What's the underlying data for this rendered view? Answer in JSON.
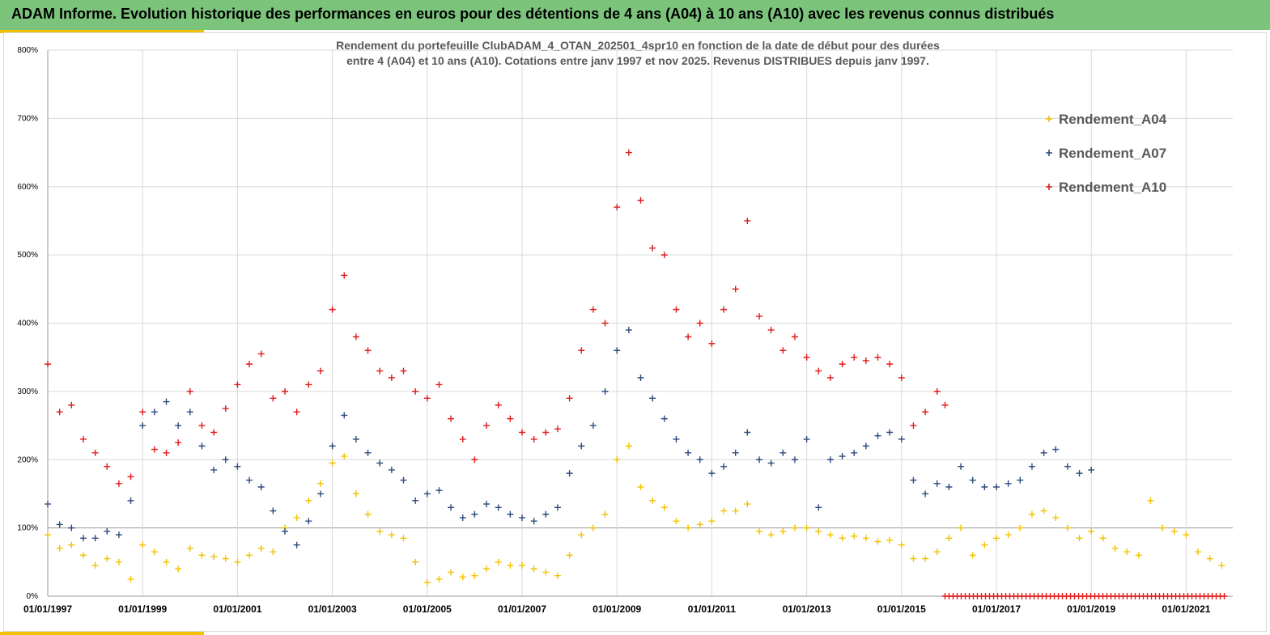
{
  "header": {
    "title": "ADAM Informe. Evolution historique des performances en euros pour des détentions de 4 ans (A04) à 10 ans (A10) avec les revenus connus distribués"
  },
  "chart_data": {
    "type": "scatter",
    "title": "",
    "subtitle_lines": [
      "Rendement du portefeuille ClubADAM_4_OTAN_202501_4spr10  en fonction de la date de début pour des durées",
      "entre 4 (A04) et 10 ans (A10). Cotations entre janv 1997 et nov 2025. Revenus DISTRIBUES depuis janv 1997."
    ],
    "xlabel": "",
    "ylabel": "",
    "xlim": [
      "1997-01-01",
      "2021-11-30"
    ],
    "ylim": [
      0,
      800
    ],
    "grid": true,
    "legend_position": "top-right",
    "x_tick_labels": [
      "01/01/1997",
      "01/01/1999",
      "01/01/2001",
      "01/01/2003",
      "01/01/2005",
      "01/01/2007",
      "01/01/2009",
      "01/01/2011",
      "01/01/2013",
      "01/01/2015",
      "01/01/2017",
      "01/01/2019",
      "01/01/2021"
    ],
    "y_tick_labels": [
      "0%",
      "100%",
      "200%",
      "300%",
      "400%",
      "500%",
      "600%",
      "700%",
      "800%"
    ],
    "series": [
      {
        "name": "Rendement_A04",
        "color": "#f2c200",
        "points": [
          [
            "1997-01",
            90
          ],
          [
            "1997-04",
            70
          ],
          [
            "1997-07",
            75
          ],
          [
            "1997-10",
            60
          ],
          [
            "1998-01",
            45
          ],
          [
            "1998-04",
            55
          ],
          [
            "1998-07",
            50
          ],
          [
            "1998-10",
            25
          ],
          [
            "1999-01",
            75
          ],
          [
            "1999-04",
            65
          ],
          [
            "1999-07",
            50
          ],
          [
            "1999-10",
            40
          ],
          [
            "2000-01",
            70
          ],
          [
            "2000-04",
            60
          ],
          [
            "2000-07",
            58
          ],
          [
            "2000-10",
            55
          ],
          [
            "2001-01",
            50
          ],
          [
            "2001-04",
            60
          ],
          [
            "2001-07",
            70
          ],
          [
            "2001-10",
            65
          ],
          [
            "2002-01",
            100
          ],
          [
            "2002-04",
            115
          ],
          [
            "2002-07",
            140
          ],
          [
            "2002-10",
            165
          ],
          [
            "2003-01",
            195
          ],
          [
            "2003-04",
            205
          ],
          [
            "2003-07",
            150
          ],
          [
            "2003-10",
            120
          ],
          [
            "2004-01",
            95
          ],
          [
            "2004-04",
            90
          ],
          [
            "2004-07",
            85
          ],
          [
            "2004-10",
            50
          ],
          [
            "2005-01",
            20
          ],
          [
            "2005-04",
            25
          ],
          [
            "2005-07",
            35
          ],
          [
            "2005-10",
            28
          ],
          [
            "2006-01",
            30
          ],
          [
            "2006-04",
            40
          ],
          [
            "2006-07",
            50
          ],
          [
            "2006-10",
            45
          ],
          [
            "2007-01",
            45
          ],
          [
            "2007-04",
            40
          ],
          [
            "2007-07",
            35
          ],
          [
            "2007-10",
            30
          ],
          [
            "2008-01",
            60
          ],
          [
            "2008-04",
            90
          ],
          [
            "2008-07",
            100
          ],
          [
            "2008-10",
            120
          ],
          [
            "2009-01",
            200
          ],
          [
            "2009-04",
            220
          ],
          [
            "2009-07",
            160
          ],
          [
            "2009-10",
            140
          ],
          [
            "2010-01",
            130
          ],
          [
            "2010-04",
            110
          ],
          [
            "2010-07",
            100
          ],
          [
            "2010-10",
            105
          ],
          [
            "2011-01",
            110
          ],
          [
            "2011-04",
            125
          ],
          [
            "2011-07",
            125
          ],
          [
            "2011-10",
            135
          ],
          [
            "2012-01",
            95
          ],
          [
            "2012-04",
            90
          ],
          [
            "2012-07",
            95
          ],
          [
            "2012-10",
            100
          ],
          [
            "2013-01",
            100
          ],
          [
            "2013-04",
            95
          ],
          [
            "2013-07",
            90
          ],
          [
            "2013-10",
            85
          ],
          [
            "2014-01",
            88
          ],
          [
            "2014-04",
            85
          ],
          [
            "2014-07",
            80
          ],
          [
            "2014-10",
            82
          ],
          [
            "2015-01",
            75
          ],
          [
            "2015-04",
            55
          ],
          [
            "2015-07",
            55
          ],
          [
            "2015-10",
            65
          ],
          [
            "2016-01",
            85
          ],
          [
            "2016-04",
            100
          ],
          [
            "2016-07",
            60
          ],
          [
            "2016-10",
            75
          ],
          [
            "2017-01",
            85
          ],
          [
            "2017-04",
            90
          ],
          [
            "2017-07",
            100
          ],
          [
            "2017-10",
            120
          ],
          [
            "2018-01",
            125
          ],
          [
            "2018-04",
            115
          ],
          [
            "2018-07",
            100
          ],
          [
            "2018-10",
            85
          ],
          [
            "2019-01",
            95
          ],
          [
            "2019-04",
            85
          ],
          [
            "2019-07",
            70
          ],
          [
            "2019-10",
            65
          ],
          [
            "2020-01",
            60
          ],
          [
            "2020-04",
            140
          ],
          [
            "2020-07",
            100
          ],
          [
            "2020-10",
            95
          ],
          [
            "2021-01",
            90
          ],
          [
            "2021-04",
            65
          ],
          [
            "2021-07",
            55
          ],
          [
            "2021-10",
            45
          ]
        ]
      },
      {
        "name": "Rendement_A07",
        "color": "#2e4a7d",
        "points": [
          [
            "1997-01",
            135
          ],
          [
            "1997-04",
            105
          ],
          [
            "1997-07",
            100
          ],
          [
            "1997-10",
            85
          ],
          [
            "1998-01",
            85
          ],
          [
            "1998-04",
            95
          ],
          [
            "1998-07",
            90
          ],
          [
            "1998-10",
            140
          ],
          [
            "1999-01",
            250
          ],
          [
            "1999-04",
            270
          ],
          [
            "1999-07",
            285
          ],
          [
            "1999-10",
            250
          ],
          [
            "2000-01",
            270
          ],
          [
            "2000-04",
            220
          ],
          [
            "2000-07",
            185
          ],
          [
            "2000-10",
            200
          ],
          [
            "2001-01",
            190
          ],
          [
            "2001-04",
            170
          ],
          [
            "2001-07",
            160
          ],
          [
            "2001-10",
            125
          ],
          [
            "2002-01",
            95
          ],
          [
            "2002-04",
            75
          ],
          [
            "2002-07",
            110
          ],
          [
            "2002-10",
            150
          ],
          [
            "2003-01",
            220
          ],
          [
            "2003-04",
            265
          ],
          [
            "2003-07",
            230
          ],
          [
            "2003-10",
            210
          ],
          [
            "2004-01",
            195
          ],
          [
            "2004-04",
            185
          ],
          [
            "2004-07",
            170
          ],
          [
            "2004-10",
            140
          ],
          [
            "2005-01",
            150
          ],
          [
            "2005-04",
            155
          ],
          [
            "2005-07",
            130
          ],
          [
            "2005-10",
            115
          ],
          [
            "2006-01",
            120
          ],
          [
            "2006-04",
            135
          ],
          [
            "2006-07",
            130
          ],
          [
            "2006-10",
            120
          ],
          [
            "2007-01",
            115
          ],
          [
            "2007-04",
            110
          ],
          [
            "2007-07",
            120
          ],
          [
            "2007-10",
            130
          ],
          [
            "2008-01",
            180
          ],
          [
            "2008-04",
            220
          ],
          [
            "2008-07",
            250
          ],
          [
            "2008-10",
            300
          ],
          [
            "2009-01",
            360
          ],
          [
            "2009-04",
            390
          ],
          [
            "2009-07",
            320
          ],
          [
            "2009-10",
            290
          ],
          [
            "2010-01",
            260
          ],
          [
            "2010-04",
            230
          ],
          [
            "2010-07",
            210
          ],
          [
            "2010-10",
            200
          ],
          [
            "2011-01",
            180
          ],
          [
            "2011-04",
            190
          ],
          [
            "2011-07",
            210
          ],
          [
            "2011-10",
            240
          ],
          [
            "2012-01",
            200
          ],
          [
            "2012-04",
            195
          ],
          [
            "2012-07",
            210
          ],
          [
            "2012-10",
            200
          ],
          [
            "2013-01",
            230
          ],
          [
            "2013-04",
            130
          ],
          [
            "2013-07",
            200
          ],
          [
            "2013-10",
            205
          ],
          [
            "2014-01",
            210
          ],
          [
            "2014-04",
            220
          ],
          [
            "2014-07",
            235
          ],
          [
            "2014-10",
            240
          ],
          [
            "2015-01",
            230
          ],
          [
            "2015-04",
            170
          ],
          [
            "2015-07",
            150
          ],
          [
            "2015-10",
            165
          ],
          [
            "2016-01",
            160
          ],
          [
            "2016-04",
            190
          ],
          [
            "2016-07",
            170
          ],
          [
            "2016-10",
            160
          ],
          [
            "2017-01",
            160
          ],
          [
            "2017-04",
            165
          ],
          [
            "2017-07",
            170
          ],
          [
            "2017-10",
            190
          ],
          [
            "2018-01",
            210
          ],
          [
            "2018-04",
            215
          ],
          [
            "2018-07",
            190
          ],
          [
            "2018-10",
            180
          ],
          [
            "2019-01",
            185
          ]
        ]
      },
      {
        "name": "Rendement_A10",
        "color": "#e01b1b",
        "points": [
          [
            "1997-01",
            340
          ],
          [
            "1997-04",
            270
          ],
          [
            "1997-07",
            280
          ],
          [
            "1997-10",
            230
          ],
          [
            "1998-01",
            210
          ],
          [
            "1998-04",
            190
          ],
          [
            "1998-07",
            165
          ],
          [
            "1998-10",
            175
          ],
          [
            "1999-01",
            270
          ],
          [
            "1999-04",
            215
          ],
          [
            "1999-07",
            210
          ],
          [
            "1999-10",
            225
          ],
          [
            "2000-01",
            300
          ],
          [
            "2000-04",
            250
          ],
          [
            "2000-07",
            240
          ],
          [
            "2000-10",
            275
          ],
          [
            "2001-01",
            310
          ],
          [
            "2001-04",
            340
          ],
          [
            "2001-07",
            355
          ],
          [
            "2001-10",
            290
          ],
          [
            "2002-01",
            300
          ],
          [
            "2002-04",
            270
          ],
          [
            "2002-07",
            310
          ],
          [
            "2002-10",
            330
          ],
          [
            "2003-01",
            420
          ],
          [
            "2003-04",
            470
          ],
          [
            "2003-07",
            380
          ],
          [
            "2003-10",
            360
          ],
          [
            "2004-01",
            330
          ],
          [
            "2004-04",
            320
          ],
          [
            "2004-07",
            330
          ],
          [
            "2004-10",
            300
          ],
          [
            "2005-01",
            290
          ],
          [
            "2005-04",
            310
          ],
          [
            "2005-07",
            260
          ],
          [
            "2005-10",
            230
          ],
          [
            "2006-01",
            200
          ],
          [
            "2006-04",
            250
          ],
          [
            "2006-07",
            280
          ],
          [
            "2006-10",
            260
          ],
          [
            "2007-01",
            240
          ],
          [
            "2007-04",
            230
          ],
          [
            "2007-07",
            240
          ],
          [
            "2007-10",
            245
          ],
          [
            "2008-01",
            290
          ],
          [
            "2008-04",
            360
          ],
          [
            "2008-07",
            420
          ],
          [
            "2008-10",
            400
          ],
          [
            "2009-01",
            570
          ],
          [
            "2009-04",
            650
          ],
          [
            "2009-07",
            580
          ],
          [
            "2009-10",
            510
          ],
          [
            "2010-01",
            500
          ],
          [
            "2010-04",
            420
          ],
          [
            "2010-07",
            380
          ],
          [
            "2010-10",
            400
          ],
          [
            "2011-01",
            370
          ],
          [
            "2011-04",
            420
          ],
          [
            "2011-07",
            450
          ],
          [
            "2011-10",
            550
          ],
          [
            "2012-01",
            410
          ],
          [
            "2012-04",
            390
          ],
          [
            "2012-07",
            360
          ],
          [
            "2012-10",
            380
          ],
          [
            "2013-01",
            350
          ],
          [
            "2013-04",
            330
          ],
          [
            "2013-07",
            320
          ],
          [
            "2013-10",
            340
          ],
          [
            "2014-01",
            350
          ],
          [
            "2014-04",
            345
          ],
          [
            "2014-07",
            350
          ],
          [
            "2014-10",
            340
          ],
          [
            "2015-01",
            320
          ],
          [
            "2015-04",
            250
          ],
          [
            "2015-07",
            270
          ],
          [
            "2015-10",
            300
          ],
          [
            "2015-12",
            280
          ]
        ]
      }
    ],
    "baseline_series": {
      "color": "#e01b1b",
      "from": "2015-12",
      "to": "2021-11",
      "value": 0
    }
  }
}
